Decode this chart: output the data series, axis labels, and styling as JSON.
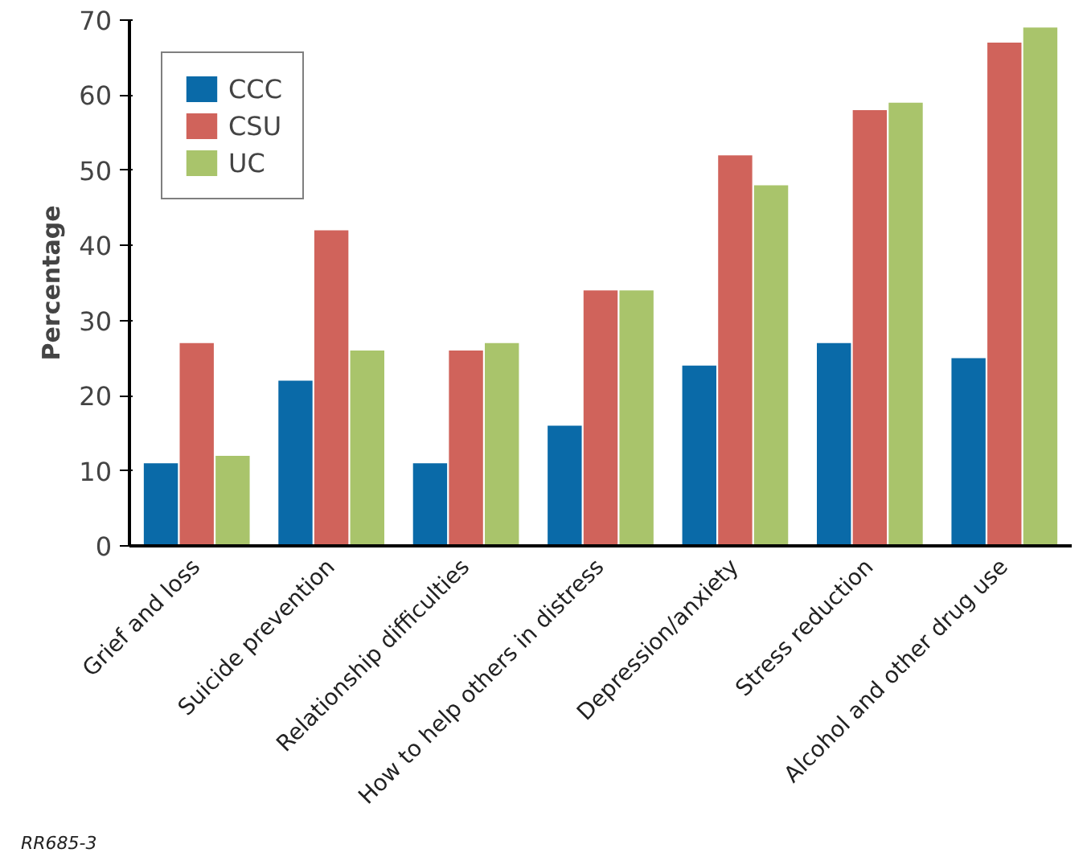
{
  "chart_data": {
    "type": "bar",
    "ylabel": "Percentage",
    "categories": [
      "Grief and loss",
      "Suicide prevention",
      "Relationship difficulties",
      "How to help others in distress",
      "Depression/anxiety",
      "Stress reduction",
      "Alcohol and other drug use"
    ],
    "series": [
      {
        "name": "CCC",
        "color": "#0a6aa8",
        "values": [
          11,
          22,
          11,
          16,
          24,
          27,
          25
        ]
      },
      {
        "name": "CSU",
        "color": "#d0635b",
        "values": [
          27,
          42,
          26,
          34,
          52,
          58,
          67
        ]
      },
      {
        "name": "UC",
        "color": "#a9c46b",
        "values": [
          12,
          26,
          27,
          34,
          48,
          59,
          69
        ]
      }
    ],
    "ylim": [
      0,
      70
    ],
    "yticks": [
      0,
      10,
      20,
      30,
      40,
      50,
      60,
      70
    ],
    "grid": false,
    "legend": "top left",
    "annotations": [
      "RR685-3"
    ]
  }
}
